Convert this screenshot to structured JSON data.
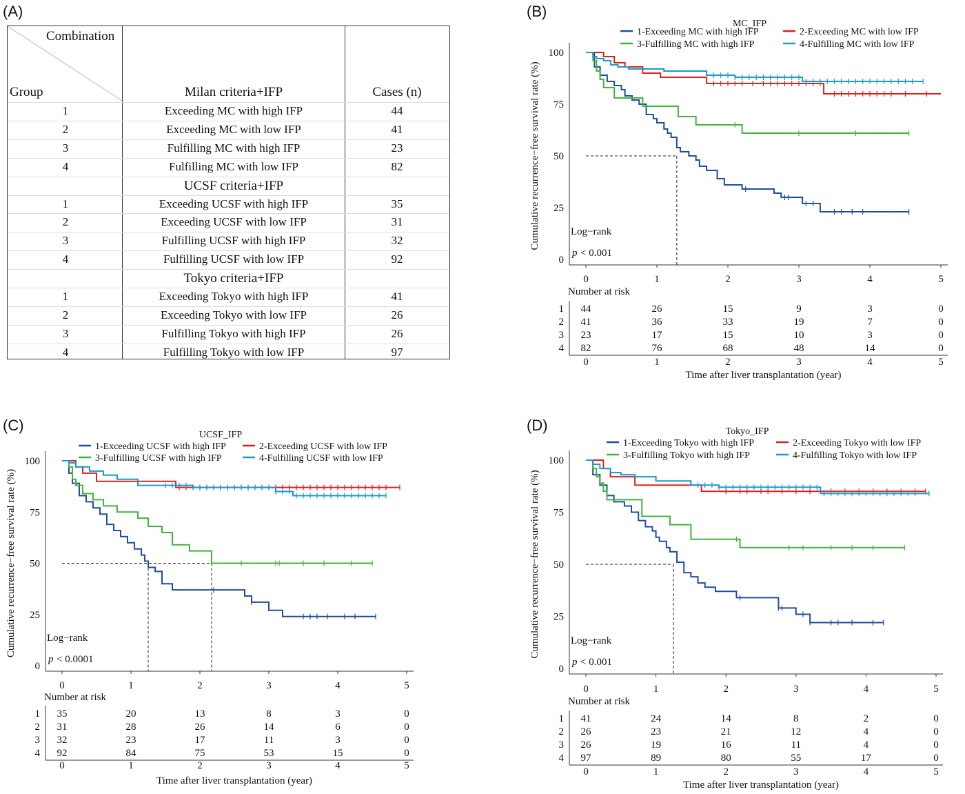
{
  "panel_labels": {
    "a": "(A)",
    "b": "(B)",
    "c": "(C)",
    "d": "(D)"
  },
  "table": {
    "header_combination": "Combination",
    "header_group": "Group",
    "header_criteria": "Milan criteria+IFP",
    "header_cases": "Cases (n)",
    "rows": [
      {
        "group": "1",
        "label": "Exceeding MC with high IFP",
        "cases": "44"
      },
      {
        "group": "2",
        "label": "Exceeding MC with low IFP",
        "cases": "41"
      },
      {
        "group": "3",
        "label": "Fulfilling MC with high IFP",
        "cases": "23"
      },
      {
        "group": "4",
        "label": "Fulfilling MC with low IFP",
        "cases": "82"
      },
      {
        "group": "",
        "label": "UCSF criteria+IFP",
        "cases": "",
        "section": true
      },
      {
        "group": "1",
        "label": "Exceeding UCSF with high IFP",
        "cases": "35"
      },
      {
        "group": "2",
        "label": "Exceeding UCSF with low IFP",
        "cases": "31"
      },
      {
        "group": "3",
        "label": "Fulfilling UCSF with high IFP",
        "cases": "32"
      },
      {
        "group": "4",
        "label": "Fulfilling UCSF with low IFP",
        "cases": "92"
      },
      {
        "group": "",
        "label": "Tokyo criteria+IFP",
        "cases": "",
        "section": true
      },
      {
        "group": "1",
        "label": "Exceeding Tokyo with high IFP",
        "cases": "41"
      },
      {
        "group": "2",
        "label": "Exceeding Tokyo with low IFP",
        "cases": "26"
      },
      {
        "group": "3",
        "label": "Fulfilling Tokyo with high IFP",
        "cases": "26"
      },
      {
        "group": "4",
        "label": "Fulfilling Tokyo with low IFP",
        "cases": "97"
      }
    ]
  },
  "colors": {
    "1": "#1f4e9c",
    "2": "#e02020",
    "3": "#3fb53a",
    "4": "#1a9bc8"
  },
  "chart_data": [
    {
      "id": "b",
      "type": "line",
      "title": "MC_IFP",
      "xlabel": "Time after liver transplantation (year)",
      "ylabel": "Cumulative recurrence−free survival rate (%)",
      "xlim": [
        0,
        5
      ],
      "ylim": [
        0,
        100
      ],
      "xticks": [
        "0",
        "1",
        "2",
        "3",
        "4",
        "5"
      ],
      "yticks": [
        "0",
        "25",
        "50",
        "75",
        "100"
      ],
      "logrank_label": "Log−rank",
      "p_label": "p",
      "p_value": "< 0.001",
      "risk_title": "Number at risk",
      "risk_row_labels": [
        "1",
        "2",
        "3",
        "4"
      ],
      "median_lines": [
        1.28
      ],
      "series": [
        {
          "name": "1-Exceeding MC with high IFP",
          "color": "#1f4e9c",
          "x": [
            0,
            0.12,
            0.2,
            0.3,
            0.4,
            0.5,
            0.55,
            0.65,
            0.75,
            0.85,
            0.95,
            1.0,
            1.1,
            1.15,
            1.2,
            1.28,
            1.33,
            1.45,
            1.55,
            1.6,
            1.7,
            1.85,
            1.95,
            2.2,
            2.4,
            2.65,
            2.75,
            2.8,
            3.05,
            3.15,
            3.25,
            3.3,
            3.6,
            4.55
          ],
          "y": [
            100,
            93,
            89,
            86,
            84,
            82,
            79,
            77,
            75,
            70,
            68,
            66,
            63,
            61,
            59,
            54,
            52,
            50,
            48,
            45,
            43,
            39,
            36,
            34,
            34,
            32,
            30,
            30,
            27,
            27,
            27,
            23,
            23,
            23
          ],
          "censor": [
            2.25,
            2.8,
            2.85,
            3.1,
            3.2,
            3.5,
            3.6,
            3.75,
            3.9,
            4.55
          ]
        },
        {
          "name": "2-Exceeding MC with low IFP",
          "color": "#e02020",
          "x": [
            0,
            0.25,
            0.4,
            0.55,
            0.8,
            1.05,
            1.7,
            3.35,
            5.0
          ],
          "y": [
            100,
            98,
            95,
            93,
            90,
            88,
            85,
            80,
            80
          ],
          "censor": [
            1.8,
            1.9,
            2.0,
            2.1,
            2.2,
            2.35,
            2.5,
            2.6,
            2.7,
            2.8,
            2.9,
            3.0,
            3.1,
            3.2,
            3.3,
            3.5,
            3.6,
            3.7,
            3.8,
            3.9,
            4.0,
            4.1,
            4.2,
            4.3,
            4.5,
            4.8
          ]
        },
        {
          "name": "3-Fulfilling MC with high IFP",
          "color": "#3fb53a",
          "x": [
            0,
            0.1,
            0.15,
            0.2,
            0.25,
            0.3,
            0.4,
            0.6,
            0.8,
            1.3,
            1.55,
            2.2,
            4.55
          ],
          "y": [
            100,
            96,
            91,
            87,
            83,
            83,
            78,
            78,
            74,
            69,
            65,
            61,
            61
          ],
          "censor": [
            2.1,
            3.0,
            3.8,
            4.55
          ]
        },
        {
          "name": "4-Fulfilling MC with low IFP",
          "color": "#1a9bc8",
          "x": [
            0,
            0.1,
            0.15,
            0.25,
            0.35,
            0.45,
            0.6,
            1.1,
            1.7,
            2.1,
            3.05,
            4.75
          ],
          "y": [
            100,
            98,
            97,
            96,
            94,
            93,
            92,
            91,
            89,
            88,
            86,
            86
          ],
          "censor": [
            1.8,
            1.9,
            2.0,
            2.1,
            2.2,
            2.3,
            2.4,
            2.5,
            2.6,
            2.7,
            2.8,
            2.9,
            3.0,
            3.1,
            3.2,
            3.3,
            3.4,
            3.5,
            3.6,
            3.7,
            3.8,
            3.9,
            4.0,
            4.1,
            4.2,
            4.3,
            4.4,
            4.5,
            4.6,
            4.75
          ]
        }
      ],
      "risk_table": [
        [
          "44",
          "26",
          "15",
          "9",
          "3",
          "0"
        ],
        [
          "41",
          "36",
          "33",
          "19",
          "7",
          "0"
        ],
        [
          "23",
          "17",
          "15",
          "10",
          "3",
          "0"
        ],
        [
          "82",
          "76",
          "68",
          "48",
          "14",
          "0"
        ]
      ]
    },
    {
      "id": "c",
      "type": "line",
      "title": "UCSF_IFP",
      "xlabel": "Time after liver transplantation (year)",
      "ylabel": "Cumulative recurrence−free survival rate (%)",
      "xlim": [
        0,
        5
      ],
      "ylim": [
        0,
        100
      ],
      "xticks": [
        "0",
        "1",
        "2",
        "3",
        "4",
        "5"
      ],
      "yticks": [
        "0",
        "25",
        "50",
        "75",
        "100"
      ],
      "logrank_label": "Log−rank",
      "p_label": "p",
      "p_value": "< 0.0001",
      "risk_title": "Number at risk",
      "risk_row_labels": [
        "1",
        "2",
        "3",
        "4"
      ],
      "median_lines": [
        1.25,
        2.17
      ],
      "series": [
        {
          "name": "1-Exceeding UCSF with high IFP",
          "color": "#1f4e9c",
          "x": [
            0,
            0.1,
            0.15,
            0.25,
            0.35,
            0.45,
            0.55,
            0.65,
            0.75,
            0.85,
            0.95,
            1.05,
            1.15,
            1.2,
            1.25,
            1.35,
            1.45,
            1.6,
            2.0,
            2.65,
            2.75,
            3.0,
            3.2,
            4.55
          ],
          "y": [
            100,
            94,
            89,
            83,
            80,
            77,
            74,
            69,
            66,
            63,
            60,
            57,
            54,
            51,
            48,
            46,
            40,
            37,
            37,
            34,
            31,
            27,
            24,
            24
          ],
          "censor": [
            2.2,
            2.75,
            3.5,
            3.6,
            3.7,
            3.85,
            4.1,
            4.25,
            4.55
          ]
        },
        {
          "name": "2-Exceeding UCSF with low IFP",
          "color": "#e02020",
          "x": [
            0,
            0.2,
            0.3,
            0.5,
            1.65,
            4.9
          ],
          "y": [
            100,
            97,
            94,
            90,
            87,
            87
          ],
          "censor": [
            1.7,
            1.8,
            1.9,
            2.0,
            2.1,
            2.2,
            2.3,
            2.4,
            2.5,
            2.6,
            2.7,
            2.8,
            2.9,
            3.0,
            3.1,
            3.2,
            3.3,
            3.4,
            3.5,
            3.6,
            3.7,
            3.8,
            3.9,
            4.0,
            4.1,
            4.2,
            4.3,
            4.4,
            4.5,
            4.6,
            4.7,
            4.9
          ]
        },
        {
          "name": "3-Fulfilling UCSF with high IFP",
          "color": "#3fb53a",
          "x": [
            0,
            0.1,
            0.15,
            0.2,
            0.3,
            0.45,
            0.6,
            0.8,
            1.1,
            1.25,
            1.45,
            1.6,
            1.85,
            2.17,
            4.5
          ],
          "y": [
            100,
            97,
            91,
            88,
            84,
            81,
            78,
            75,
            72,
            68,
            65,
            59,
            56,
            50,
            50
          ],
          "censor": [
            2.6,
            3.1,
            3.15,
            3.5,
            3.8,
            4.2,
            4.5
          ]
        },
        {
          "name": "4-Fulfilling UCSF with low IFP",
          "color": "#1a9bc8",
          "x": [
            0,
            0.1,
            0.2,
            0.4,
            0.6,
            0.8,
            1.1,
            1.6,
            1.9,
            3.1,
            3.35,
            4.7
          ],
          "y": [
            100,
            99,
            97,
            95,
            93,
            91,
            88,
            88,
            87,
            85,
            83,
            83
          ],
          "censor": [
            1.5,
            1.6,
            1.7,
            1.8,
            1.9,
            2.0,
            2.1,
            2.2,
            2.3,
            2.4,
            2.5,
            2.6,
            2.7,
            2.8,
            2.9,
            3.0,
            3.1,
            3.2,
            3.3,
            3.4,
            3.5,
            3.6,
            3.7,
            3.8,
            3.9,
            4.0,
            4.1,
            4.2,
            4.3,
            4.4,
            4.5,
            4.6,
            4.7
          ]
        }
      ],
      "risk_table": [
        [
          "35",
          "20",
          "13",
          "8",
          "3",
          "0"
        ],
        [
          "31",
          "28",
          "26",
          "14",
          "6",
          "0"
        ],
        [
          "32",
          "23",
          "17",
          "11",
          "3",
          "0"
        ],
        [
          "92",
          "84",
          "75",
          "53",
          "15",
          "0"
        ]
      ]
    },
    {
      "id": "d",
      "type": "line",
      "title": "Tokyo_IFP",
      "xlabel": "Time after liver transplantation (year)",
      "ylabel": "Cumulative recurrence−free survival rate (%)",
      "xlim": [
        0,
        5
      ],
      "ylim": [
        0,
        100
      ],
      "xticks": [
        "0",
        "1",
        "2",
        "3",
        "4",
        "5"
      ],
      "yticks": [
        "0",
        "25",
        "50",
        "75",
        "100"
      ],
      "logrank_label": "Log−rank",
      "p_label": "p",
      "p_value": "< 0.001",
      "risk_title": "Number at risk",
      "risk_row_labels": [
        "1",
        "2",
        "3",
        "4"
      ],
      "median_lines": [
        1.25
      ],
      "series": [
        {
          "name": "1-Exceeding Tokyo with high IFP",
          "color": "#1f4e9c",
          "x": [
            0,
            0.1,
            0.2,
            0.3,
            0.4,
            0.55,
            0.65,
            0.75,
            0.85,
            0.95,
            1.0,
            1.05,
            1.15,
            1.2,
            1.3,
            1.4,
            1.5,
            1.6,
            1.7,
            1.85,
            2.15,
            2.65,
            2.75,
            3.0,
            3.2,
            4.25
          ],
          "y": [
            100,
            93,
            88,
            83,
            80,
            78,
            75,
            71,
            68,
            66,
            63,
            61,
            58,
            56,
            51,
            46,
            44,
            41,
            39,
            37,
            34,
            34,
            29,
            26,
            22,
            22
          ],
          "censor": [
            2.2,
            2.75,
            2.8,
            3.1,
            3.2,
            3.5,
            3.6,
            3.8,
            4.1,
            4.25
          ]
        },
        {
          "name": "2-Exceeding Tokyo with low IFP",
          "color": "#e02020",
          "x": [
            0,
            0.25,
            0.35,
            0.5,
            0.7,
            1.65,
            3.35,
            4.85
          ],
          "y": [
            100,
            96,
            92,
            92,
            88,
            85,
            85,
            85
          ],
          "censor": [
            2.0,
            2.2,
            2.3,
            2.5,
            2.6,
            2.8,
            3.0,
            3.2,
            3.5,
            3.7,
            3.9,
            4.1,
            4.3,
            4.5,
            4.7,
            4.85
          ]
        },
        {
          "name": "3-Fulfilling Tokyo with high IFP",
          "color": "#3fb53a",
          "x": [
            0,
            0.1,
            0.15,
            0.2,
            0.25,
            0.3,
            0.5,
            0.8,
            1.2,
            1.5,
            2.2,
            4.55
          ],
          "y": [
            100,
            96,
            92,
            89,
            85,
            81,
            81,
            73,
            69,
            62,
            58,
            58
          ],
          "censor": [
            2.15,
            2.9,
            3.1,
            3.5,
            3.8,
            4.1,
            4.55
          ]
        },
        {
          "name": "4-Fulfilling Tokyo with low IFP",
          "color": "#1a9bc8",
          "x": [
            0,
            0.1,
            0.2,
            0.35,
            0.5,
            0.7,
            1.0,
            1.5,
            1.9,
            3.35,
            4.9
          ],
          "y": [
            100,
            98,
            96,
            94,
            93,
            92,
            90,
            88,
            87,
            84,
            84
          ],
          "censor": [
            1.6,
            1.7,
            1.8,
            1.9,
            2.0,
            2.1,
            2.2,
            2.3,
            2.4,
            2.5,
            2.6,
            2.7,
            2.8,
            2.9,
            3.0,
            3.1,
            3.2,
            3.3,
            3.4,
            3.5,
            3.6,
            3.7,
            3.8,
            3.9,
            4.0,
            4.1,
            4.2,
            4.3,
            4.4,
            4.5,
            4.6,
            4.7,
            4.9
          ]
        }
      ],
      "risk_table": [
        [
          "41",
          "24",
          "14",
          "8",
          "2",
          "0"
        ],
        [
          "26",
          "23",
          "21",
          "12",
          "4",
          "0"
        ],
        [
          "26",
          "19",
          "16",
          "11",
          "4",
          "0"
        ],
        [
          "97",
          "89",
          "80",
          "55",
          "17",
          "0"
        ]
      ]
    }
  ]
}
